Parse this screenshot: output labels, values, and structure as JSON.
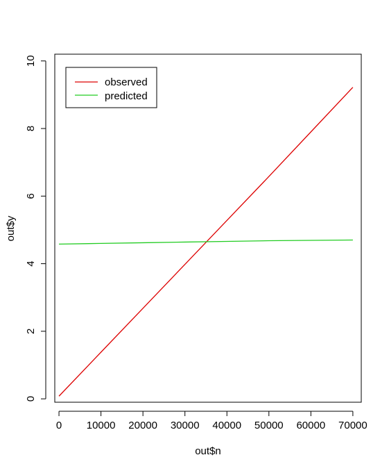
{
  "chart_data": {
    "type": "line",
    "title": "",
    "xlabel": "out$n",
    "ylabel": "out$y",
    "xlim": [
      -1000,
      72000
    ],
    "ylim": [
      -0.1,
      10.2
    ],
    "x_ticks": [
      0,
      10000,
      20000,
      30000,
      40000,
      50000,
      60000,
      70000
    ],
    "x_tick_labels": [
      "0",
      "10000",
      "20000",
      "30000",
      "40000",
      "50000",
      "60000",
      "70000"
    ],
    "y_ticks": [
      0,
      2,
      4,
      6,
      8,
      10
    ],
    "y_tick_labels": [
      "0",
      "2",
      "4",
      "6",
      "8",
      "10"
    ],
    "grid": false,
    "legend_position": "top-left",
    "series": [
      {
        "name": "observed",
        "color": "#dd0000",
        "x": [
          0,
          10000,
          20000,
          30000,
          40000,
          50000,
          60000,
          70000
        ],
        "y": [
          0.08,
          1.38,
          2.68,
          3.98,
          5.28,
          6.58,
          7.9,
          9.22
        ]
      },
      {
        "name": "predicted",
        "color": "#22cc22",
        "x": [
          0,
          10000,
          20000,
          30000,
          40000,
          50000,
          60000,
          70000
        ],
        "y": [
          4.58,
          4.6,
          4.62,
          4.64,
          4.66,
          4.68,
          4.69,
          4.7
        ]
      }
    ]
  }
}
